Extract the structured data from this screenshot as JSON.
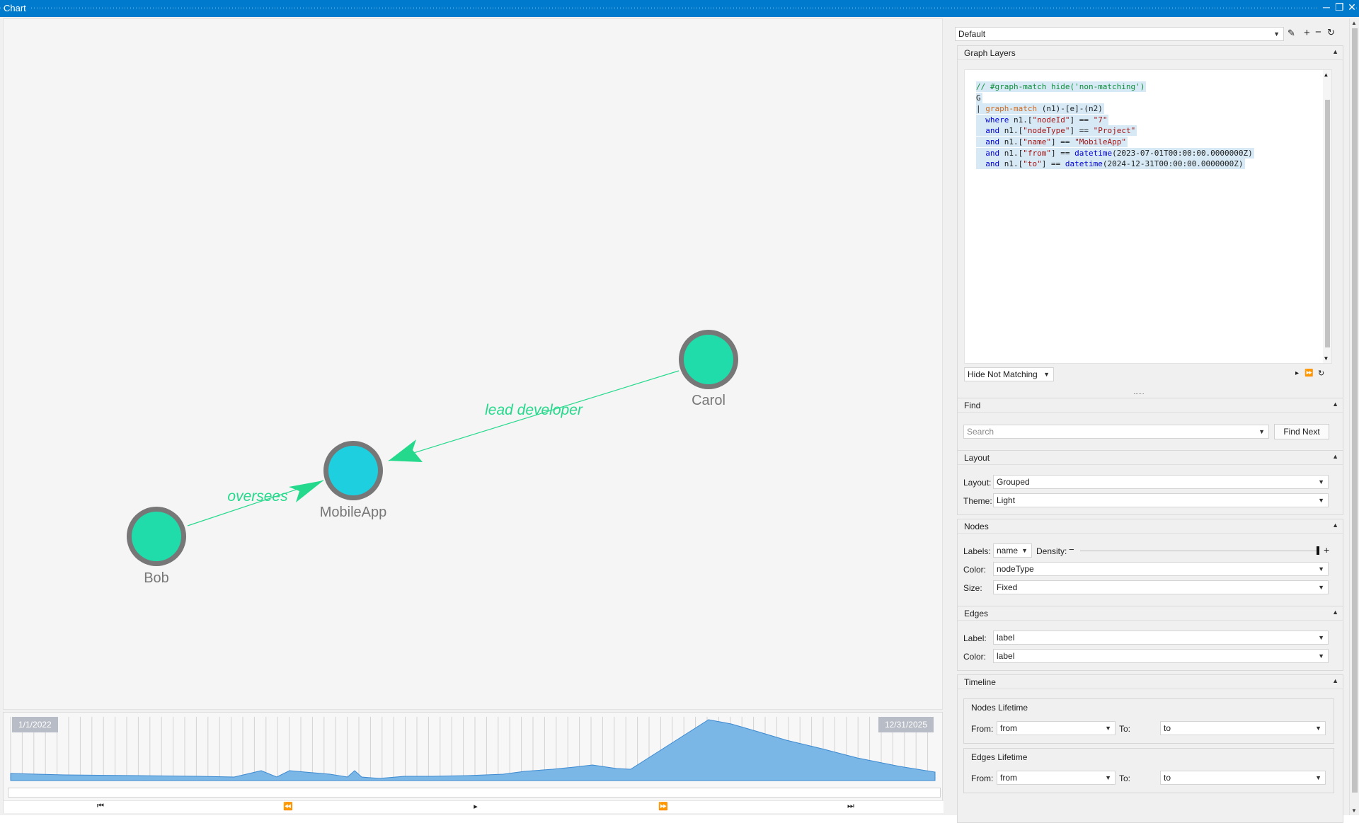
{
  "window": {
    "title": "Chart",
    "controls": [
      "minimize-icon",
      "restore-icon",
      "close-icon"
    ]
  },
  "graph": {
    "nodes": [
      {
        "label": "Bob",
        "color": "#20dcaa"
      },
      {
        "label": "MobileApp",
        "color": "#1ecfe0"
      },
      {
        "label": "Carol",
        "color": "#20dcaa"
      }
    ],
    "edges": [
      {
        "from": "Bob",
        "to": "MobileApp",
        "label": "oversees"
      },
      {
        "from": "Carol",
        "to": "MobileApp",
        "label": "lead developer"
      }
    ],
    "edge_color": "#25d98c",
    "node_ring_color": "#777777"
  },
  "timeline": {
    "start_label": "1/1/2022",
    "end_label": "12/31/2025",
    "fill_color": "#7ab6e6",
    "buttons": [
      "first-icon",
      "rewind-icon",
      "play-icon",
      "fast-forward-icon",
      "last-icon"
    ]
  },
  "panel": {
    "profile": "Default",
    "graph_layers": {
      "title": "Graph Layers",
      "code_lines": [
        [
          {
            "t": "// #graph-match hide('non-matching')",
            "c": "com"
          }
        ],
        [
          {
            "t": "G",
            "c": "def"
          }
        ],
        [
          {
            "t": "| ",
            "c": "def"
          },
          {
            "t": "graph-match",
            "c": "op"
          },
          {
            "t": " (n1)-[e]-(n2)",
            "c": "def"
          }
        ],
        [
          {
            "t": "  where",
            "c": "kw"
          },
          {
            "t": " n1.[",
            "c": "def"
          },
          {
            "t": "\"nodeId\"",
            "c": "str"
          },
          {
            "t": "] == ",
            "c": "def"
          },
          {
            "t": "\"7\"",
            "c": "str"
          }
        ],
        [
          {
            "t": "  and",
            "c": "kw"
          },
          {
            "t": " n1.[",
            "c": "def"
          },
          {
            "t": "\"nodeType\"",
            "c": "str"
          },
          {
            "t": "] == ",
            "c": "def"
          },
          {
            "t": "\"Project\"",
            "c": "str"
          }
        ],
        [
          {
            "t": "  and",
            "c": "kw"
          },
          {
            "t": " n1.[",
            "c": "def"
          },
          {
            "t": "\"name\"",
            "c": "str"
          },
          {
            "t": "] == ",
            "c": "def"
          },
          {
            "t": "\"MobileApp\"",
            "c": "str"
          }
        ],
        [
          {
            "t": "  and",
            "c": "kw"
          },
          {
            "t": " n1.[",
            "c": "def"
          },
          {
            "t": "\"from\"",
            "c": "str"
          },
          {
            "t": "] == ",
            "c": "def"
          },
          {
            "t": "datetime",
            "c": "kw"
          },
          {
            "t": "(2023-07-01T00:00:00.0000000Z)",
            "c": "def"
          }
        ],
        [
          {
            "t": "  and",
            "c": "kw"
          },
          {
            "t": " n1.[",
            "c": "def"
          },
          {
            "t": "\"to\"",
            "c": "str"
          },
          {
            "t": "] == ",
            "c": "def"
          },
          {
            "t": "datetime",
            "c": "kw"
          },
          {
            "t": "(2024-12-31T00:00:00.0000000Z)",
            "c": "def"
          }
        ]
      ],
      "mode": "Hide Not Matching"
    },
    "find": {
      "title": "Find",
      "placeholder": "Search",
      "button": "Find Next"
    },
    "layout": {
      "title": "Layout",
      "layout_label": "Layout:",
      "layout_value": "Grouped",
      "theme_label": "Theme:",
      "theme_value": "Light"
    },
    "nodes": {
      "title": "Nodes",
      "labels_label": "Labels:",
      "labels_value": "name",
      "density_label": "Density:",
      "density_level": 1.0,
      "color_label": "Color:",
      "color_value": "nodeType",
      "size_label": "Size:",
      "size_value": "Fixed"
    },
    "edges": {
      "title": "Edges",
      "label_label": "Label:",
      "label_value": "label",
      "color_label": "Color:",
      "color_value": "label"
    },
    "timeline": {
      "title": "Timeline",
      "nodes_lifetime": {
        "title": "Nodes Lifetime",
        "from_label": "From:",
        "from_value": "from",
        "to_label": "To:",
        "to_value": "to"
      },
      "edges_lifetime": {
        "title": "Edges Lifetime",
        "from_label": "From:",
        "from_value": "from",
        "to_label": "To:",
        "to_value": "to"
      }
    }
  }
}
